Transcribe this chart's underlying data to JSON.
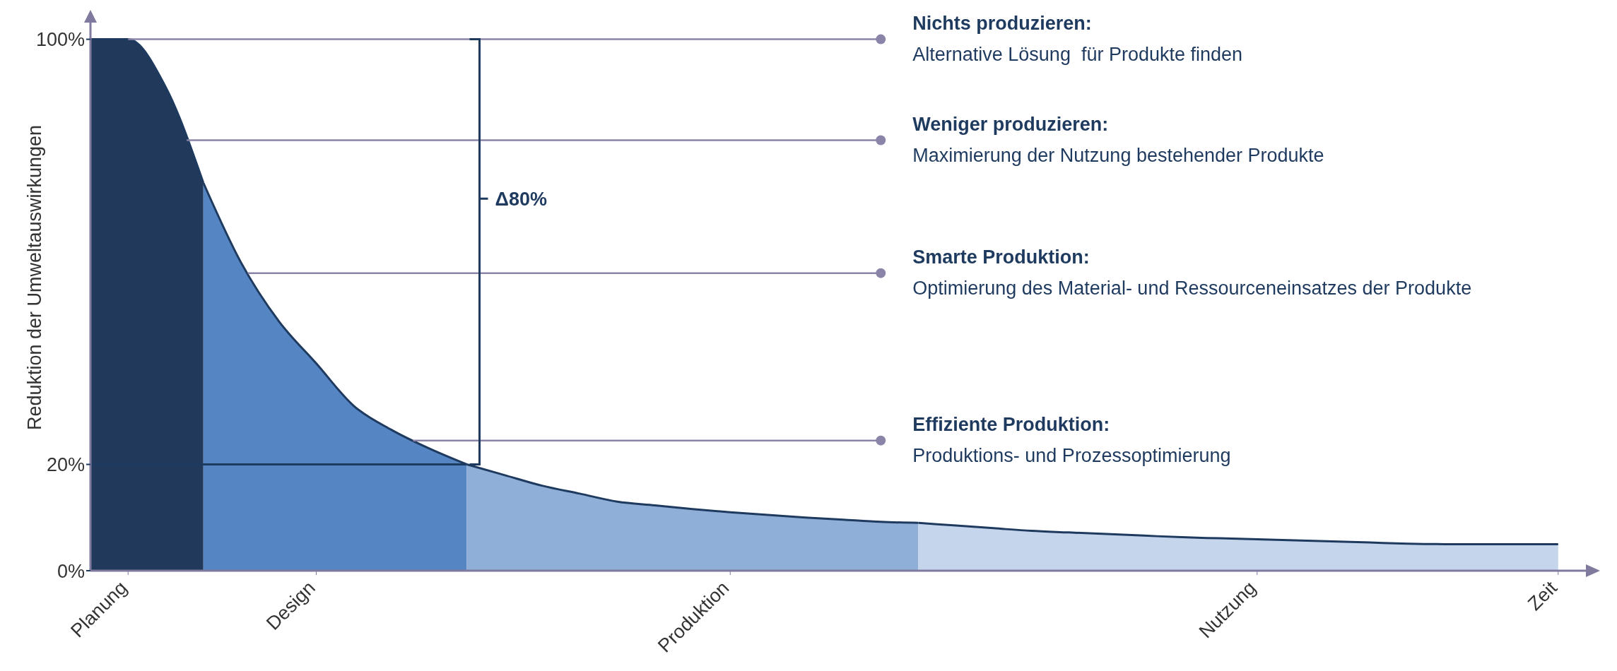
{
  "chart_data": {
    "type": "area",
    "ylabel": "Reduktion der Umweltauswirkungen",
    "categories": [
      null,
      "Planung",
      null,
      null,
      null,
      null,
      "Design",
      null,
      null,
      null,
      null,
      null,
      null,
      null,
      null,
      null,
      null,
      "Produktion",
      null,
      null,
      null,
      null,
      null,
      null,
      null,
      null,
      null,
      null,
      null,
      null,
      null,
      "Nutzung",
      null,
      null,
      null,
      null,
      null,
      null,
      null,
      "Zeit",
      null
    ],
    "ylim": [
      0,
      105
    ],
    "yticks": [
      {
        "value": 0,
        "label": "0%"
      },
      {
        "value": 20,
        "label": "20%"
      },
      {
        "value": 100,
        "label": "100%"
      }
    ],
    "series": [
      {
        "color": "#213a5c",
        "values": [
          100,
          100,
          91,
          73,
          null,
          null,
          null,
          null,
          null,
          null,
          null,
          null,
          null,
          null,
          null,
          null,
          null,
          null,
          null,
          null,
          null,
          null,
          null,
          null,
          null,
          null,
          null,
          null,
          null,
          null,
          null,
          null,
          null,
          null,
          null,
          null,
          null,
          null,
          null,
          null,
          null
        ]
      },
      {
        "color": "#5585c3",
        "values": [
          null,
          null,
          null,
          73,
          58,
          47,
          39,
          31,
          26.5,
          23,
          20,
          null,
          null,
          null,
          null,
          null,
          null,
          null,
          null,
          null,
          null,
          null,
          null,
          null,
          null,
          null,
          null,
          null,
          null,
          null,
          null,
          null,
          null,
          null,
          null,
          null,
          null,
          null,
          null,
          null,
          null
        ]
      },
      {
        "color": "#8fafd8",
        "values": [
          null,
          null,
          null,
          null,
          null,
          null,
          null,
          null,
          null,
          null,
          20,
          18,
          16,
          14.5,
          13,
          12.3,
          11.6,
          11,
          10.5,
          10,
          9.6,
          9.2,
          9,
          null,
          null,
          null,
          null,
          null,
          null,
          null,
          null,
          null,
          null,
          null,
          null,
          null,
          null,
          null,
          null,
          null,
          null
        ]
      },
      {
        "color": "#c5d5eb",
        "values": [
          null,
          null,
          null,
          null,
          null,
          null,
          null,
          null,
          null,
          null,
          null,
          null,
          null,
          null,
          null,
          null,
          null,
          null,
          null,
          null,
          null,
          null,
          9,
          8.5,
          8,
          7.5,
          7.2,
          6.9,
          6.6,
          6.3,
          6.1,
          5.9,
          5.7,
          5.5,
          5.3,
          5.1,
          5,
          5,
          5,
          5,
          null
        ]
      }
    ],
    "ref_lines": [
      {
        "axis": "y",
        "value": 100,
        "label": "Nichts produzieren:",
        "color": "#8a85a8"
      },
      {
        "axis": "y",
        "value": 81,
        "label": "Weniger produzieren:",
        "color": "#8a85a8"
      },
      {
        "axis": "y",
        "value": 56,
        "label": "Smarte Produktion:",
        "color": "#8a85a8"
      },
      {
        "axis": "y",
        "value": 24.5,
        "label": "Effiziente Produktion:",
        "color": "#8a85a8"
      },
      {
        "axis": "y",
        "value": 20,
        "color": "#1f3a5f"
      }
    ],
    "annotations": [
      "Alternative Lösung  für Produkte finden",
      "Maximierung der Nutzung bestehender Produkte",
      "Optimierung des Material- und Ressourceneinsatzes der Produkte",
      "Produktions- und Prozessoptimierung",
      "Δ80%"
    ]
  }
}
